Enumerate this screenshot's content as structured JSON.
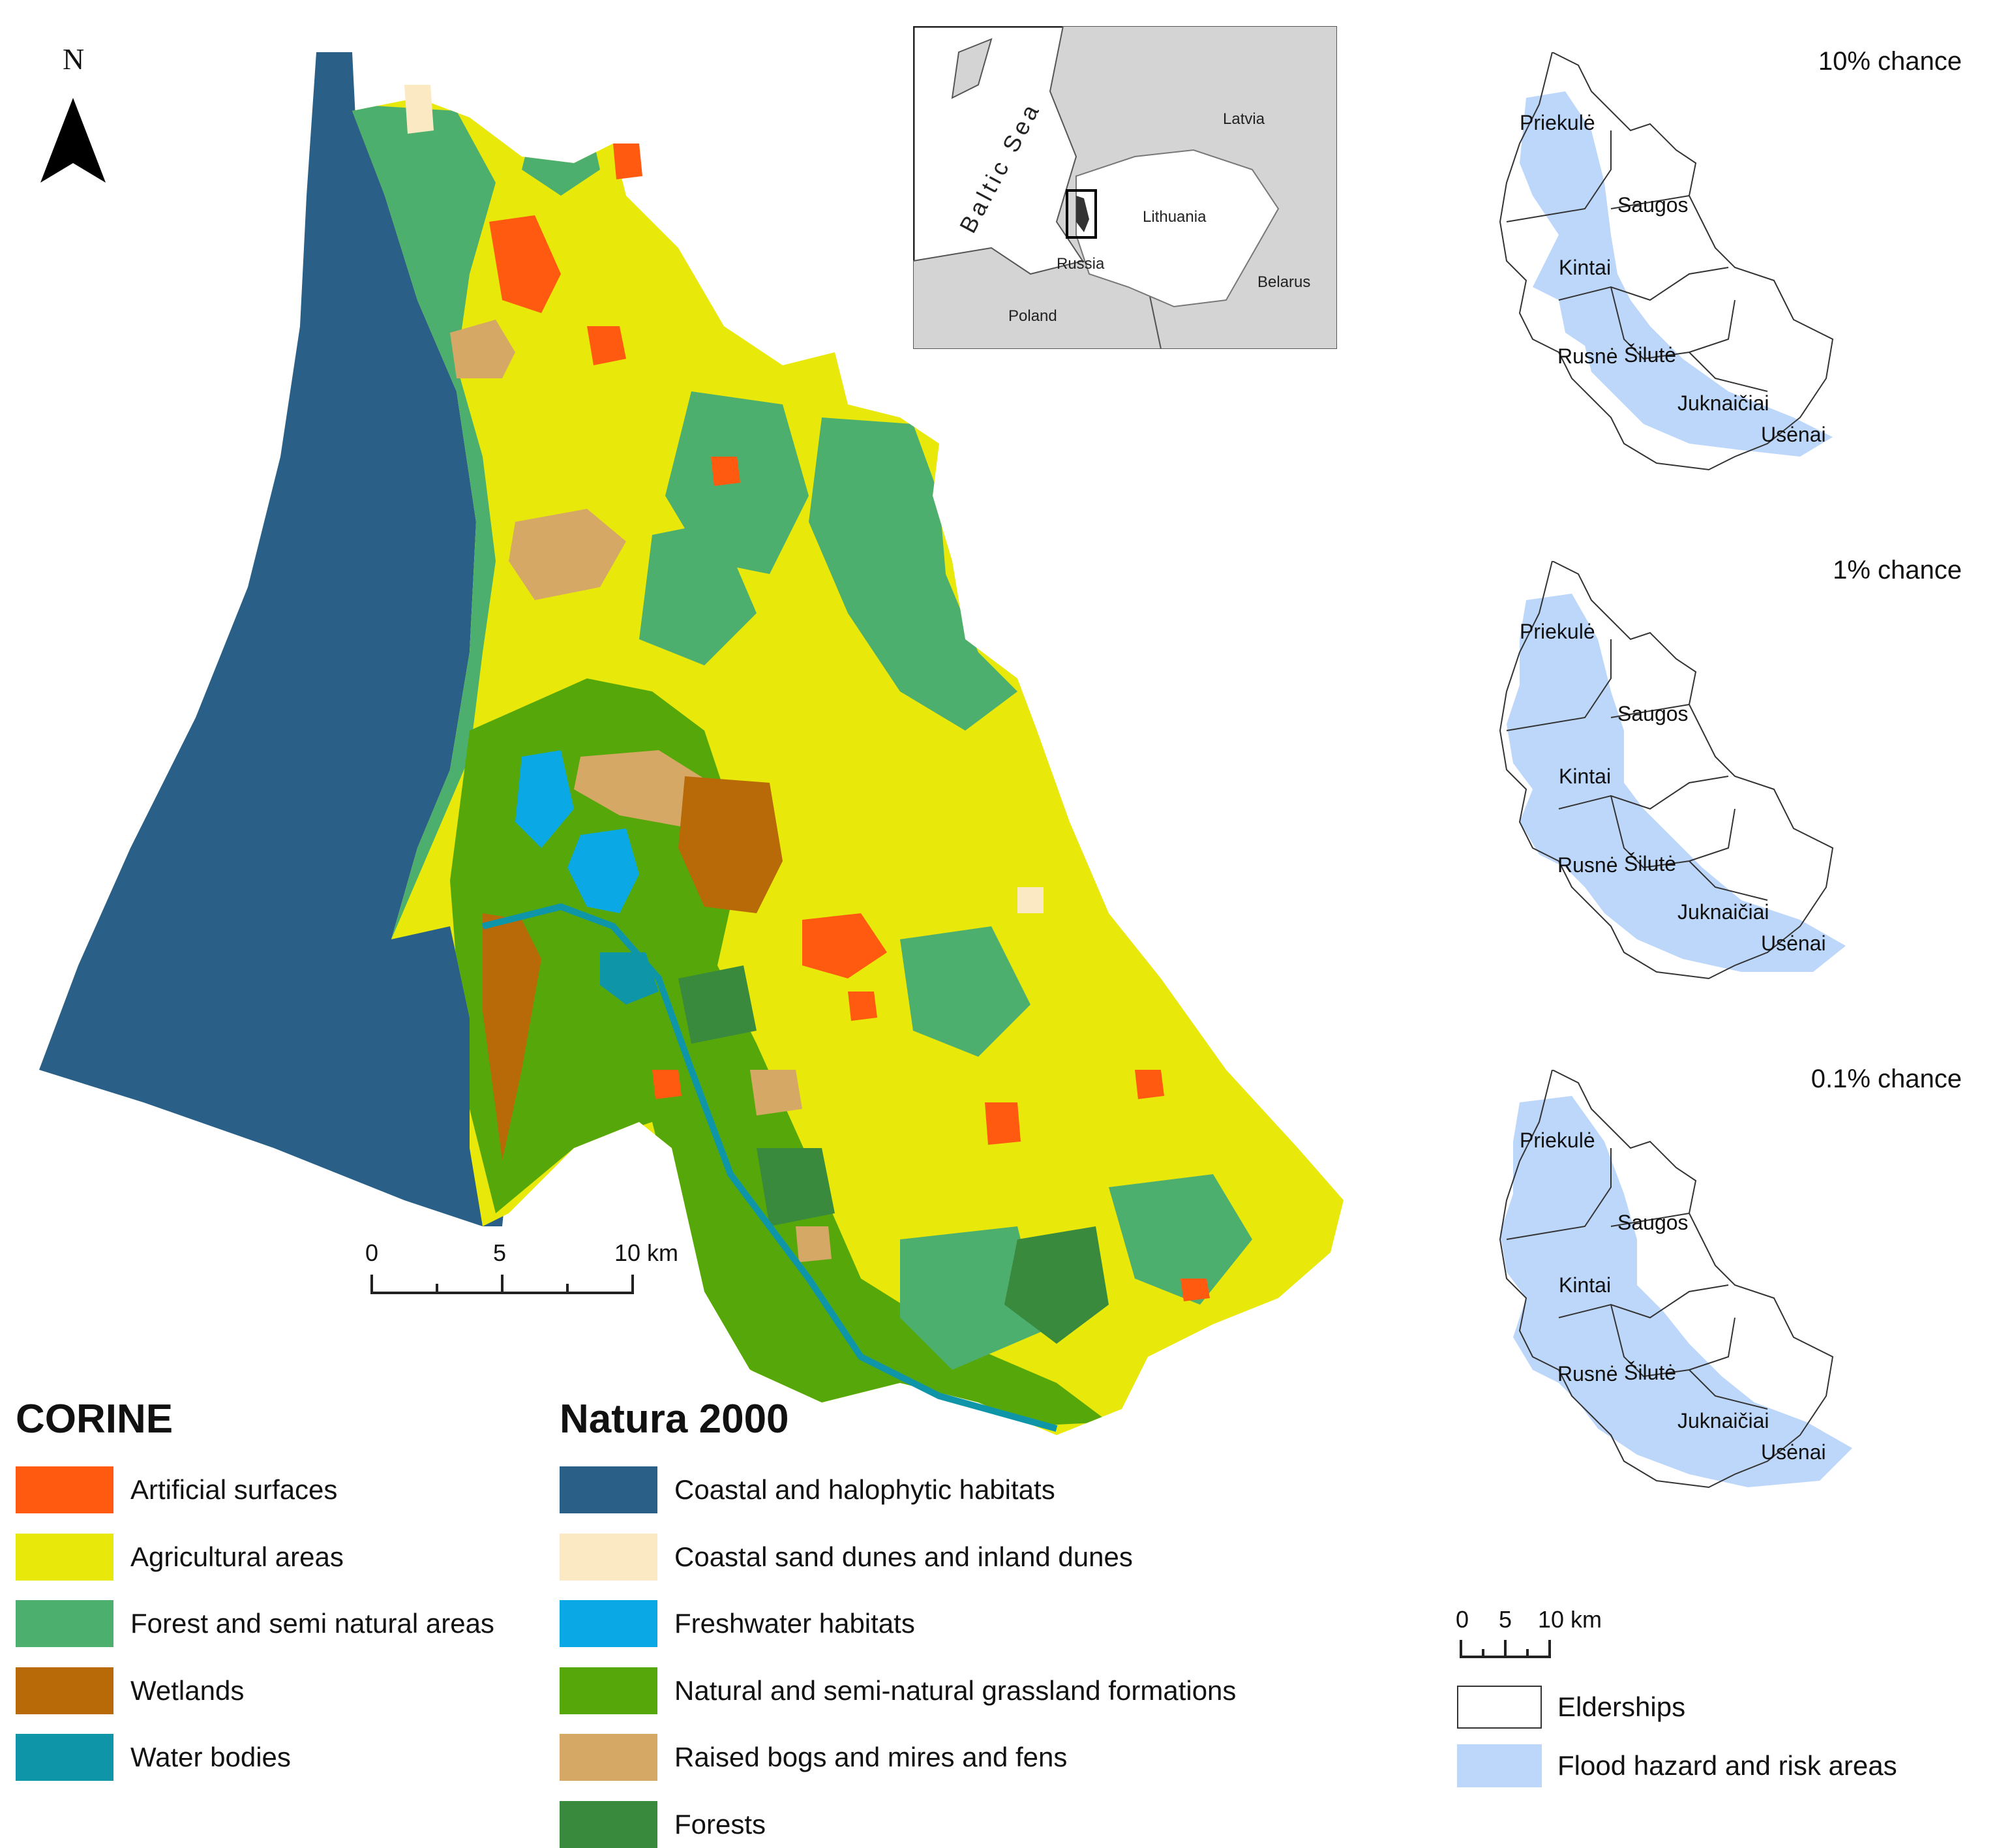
{
  "north_arrow": {
    "letter": "N"
  },
  "inset": {
    "labels": {
      "sea": "Baltic Sea",
      "latvia": "Latvia",
      "lithuania": "Lithuania",
      "russia": "Russia",
      "belarus": "Belarus",
      "poland": "Poland"
    }
  },
  "main_scalebar": {
    "labels": [
      "0",
      "5",
      "10 km"
    ]
  },
  "corine": {
    "title": "CORINE",
    "items": [
      {
        "label": "Artificial surfaces",
        "color": "#ff5a0f"
      },
      {
        "label": "Agricultural areas",
        "color": "#e8e80a"
      },
      {
        "label": "Forest and semi natural areas",
        "color": "#4caf6e"
      },
      {
        "label": "Wetlands",
        "color": "#b86a08"
      },
      {
        "label": "Water bodies",
        "color": "#0e96a8"
      }
    ]
  },
  "natura": {
    "title": "Natura 2000",
    "items": [
      {
        "label": "Coastal and halophytic habitats",
        "color": "#2a6087"
      },
      {
        "label": "Coastal sand dunes and inland dunes",
        "color": "#fae9c2"
      },
      {
        "label": "Freshwater habitats",
        "color": "#0aa9e6"
      },
      {
        "label": "Natural and semi-natural grassland formations",
        "color": "#56a80a"
      },
      {
        "label": "Raised bogs and mires and fens",
        "color": "#d6a865"
      },
      {
        "label": "Forests",
        "color": "#3a8a3e"
      }
    ]
  },
  "flood_maps": [
    {
      "title": "10% chance"
    },
    {
      "title": "1% chance"
    },
    {
      "title": "0.1% chance"
    }
  ],
  "elderships": [
    "Priekulė",
    "Saugos",
    "Kintai",
    "Rusnė",
    "Šilutė",
    "Juknaičiai",
    "Usėnai"
  ],
  "flood_scalebar": {
    "labels": [
      "0",
      "5",
      "10 km"
    ]
  },
  "flood_legend": {
    "items": [
      {
        "label": "Elderships",
        "color": "#ffffff"
      },
      {
        "label": "Flood hazard and risk areas",
        "color": "#bdd7fb"
      }
    ]
  }
}
